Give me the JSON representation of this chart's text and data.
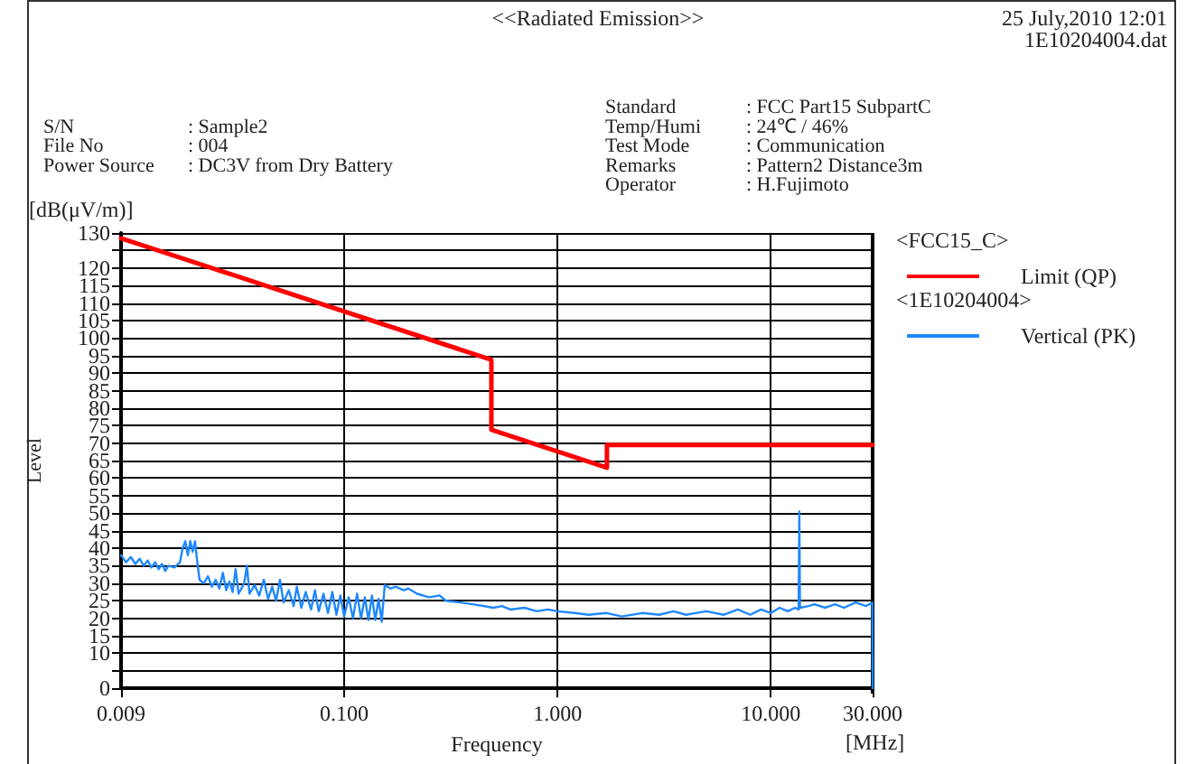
{
  "chart_data": {
    "type": "line",
    "title": "<<Radiated Emission>>",
    "xlabel": "Frequency",
    "ylabel": "Level",
    "annotations": [
      "25 July,2010 12:01",
      "1E10204004.dat",
      "[dB(μV/m)]",
      "[MHz]",
      "<FCC15_C>",
      "<1E10204004>",
      "S/N",
      ": Sample2",
      "File No",
      ": 004",
      "Power Source",
      ": DC3V from Dry Battery",
      "Standard",
      ": FCC Part15 SubpartC",
      "Temp/Humi",
      ": 24℃ / 46%",
      "Test Mode",
      ": Communication",
      "Remarks",
      ": Pattern2 Distance3m",
      "Operator",
      ": H.Fujimoto"
    ],
    "log": "x",
    "grid": true,
    "legend": "right",
    "marker": "none",
    "line_style": "solid",
    "xlim": [
      0.009,
      30
    ],
    "xticks": [
      {
        "value": 0.009,
        "label": "0.009"
      },
      {
        "value": 0.1,
        "label": "0.100"
      },
      {
        "value": 1,
        "label": "1.000"
      },
      {
        "value": 10,
        "label": "10.000"
      },
      {
        "value": 30,
        "label": "30.000"
      }
    ],
    "ylim": [
      0,
      130
    ],
    "yticks": [
      0,
      {
        "value": 5,
        "label": null
      },
      10,
      15,
      20,
      25,
      30,
      35,
      40,
      45,
      50,
      55,
      60,
      65,
      70,
      75,
      80,
      85,
      90,
      95,
      100,
      105,
      110,
      115,
      120,
      {
        "value": 125,
        "label": null
      },
      130
    ],
    "series": [
      {
        "name": "Limit (QP)",
        "color": "#ff0000",
        "x": [
          0.009,
          0.49,
          0.49,
          1.705,
          1.705,
          30
        ],
        "values": [
          128.5,
          93.8,
          73.8,
          63,
          69.5,
          69.5
        ]
      },
      {
        "name": "Vertical (PK)",
        "color": "#1e88ff",
        "x": [
          0.009,
          0.0095,
          0.01,
          0.0105,
          0.011,
          0.0115,
          0.012,
          0.0125,
          0.013,
          0.0135,
          0.014,
          0.0145,
          0.015,
          0.016,
          0.017,
          0.0175,
          0.018,
          0.0185,
          0.019,
          0.0195,
          0.02,
          0.0205,
          0.021,
          0.022,
          0.023,
          0.024,
          0.025,
          0.026,
          0.027,
          0.028,
          0.029,
          0.03,
          0.031,
          0.032,
          0.034,
          0.035,
          0.036,
          0.038,
          0.04,
          0.042,
          0.044,
          0.046,
          0.048,
          0.05,
          0.052,
          0.055,
          0.058,
          0.06,
          0.063,
          0.066,
          0.07,
          0.073,
          0.076,
          0.08,
          0.084,
          0.088,
          0.092,
          0.096,
          0.1,
          0.105,
          0.11,
          0.115,
          0.12,
          0.125,
          0.13,
          0.135,
          0.14,
          0.145,
          0.15,
          0.155,
          0.165,
          0.175,
          0.19,
          0.2,
          0.22,
          0.25,
          0.28,
          0.3,
          0.35,
          0.4,
          0.45,
          0.5,
          0.55,
          0.6,
          0.7,
          0.8,
          0.9,
          1,
          1.2,
          1.4,
          1.7,
          2,
          2.5,
          3,
          3.5,
          4,
          5,
          6,
          7,
          8,
          9,
          10,
          11,
          12,
          13,
          13.5,
          13.6,
          13.7,
          15,
          16,
          18,
          20,
          22,
          25,
          28,
          29.9,
          30
        ],
        "values": [
          38,
          36,
          37.5,
          35.5,
          37,
          35,
          36.5,
          34.5,
          36,
          34,
          35.5,
          33.5,
          35,
          34.5,
          36,
          40,
          42,
          38,
          42,
          39,
          42,
          36,
          31,
          30,
          32,
          29,
          31,
          28.5,
          33,
          28,
          30.5,
          27.5,
          34,
          27,
          30,
          35,
          27,
          29.5,
          26.5,
          31,
          25.5,
          29,
          25,
          31,
          24.5,
          28,
          23.5,
          29,
          23,
          27.5,
          22.5,
          28,
          22,
          27,
          21.5,
          27.5,
          21,
          26.5,
          20.5,
          26,
          20,
          27,
          20,
          26,
          19.5,
          26.5,
          19.5,
          25.5,
          19,
          29.5,
          28.5,
          29,
          28,
          28.5,
          27,
          26,
          26.5,
          25,
          24.5,
          24,
          23.5,
          23,
          23.5,
          22.5,
          23,
          22,
          22.5,
          22,
          21.5,
          21,
          21.5,
          20.5,
          21.5,
          21,
          22,
          21,
          22,
          21,
          22.5,
          21,
          22.5,
          21.5,
          23,
          22,
          23,
          22.5,
          50.5,
          23,
          23.5,
          24,
          23,
          24,
          23,
          24.5,
          23.5,
          24.5,
          0
        ]
      }
    ]
  }
}
